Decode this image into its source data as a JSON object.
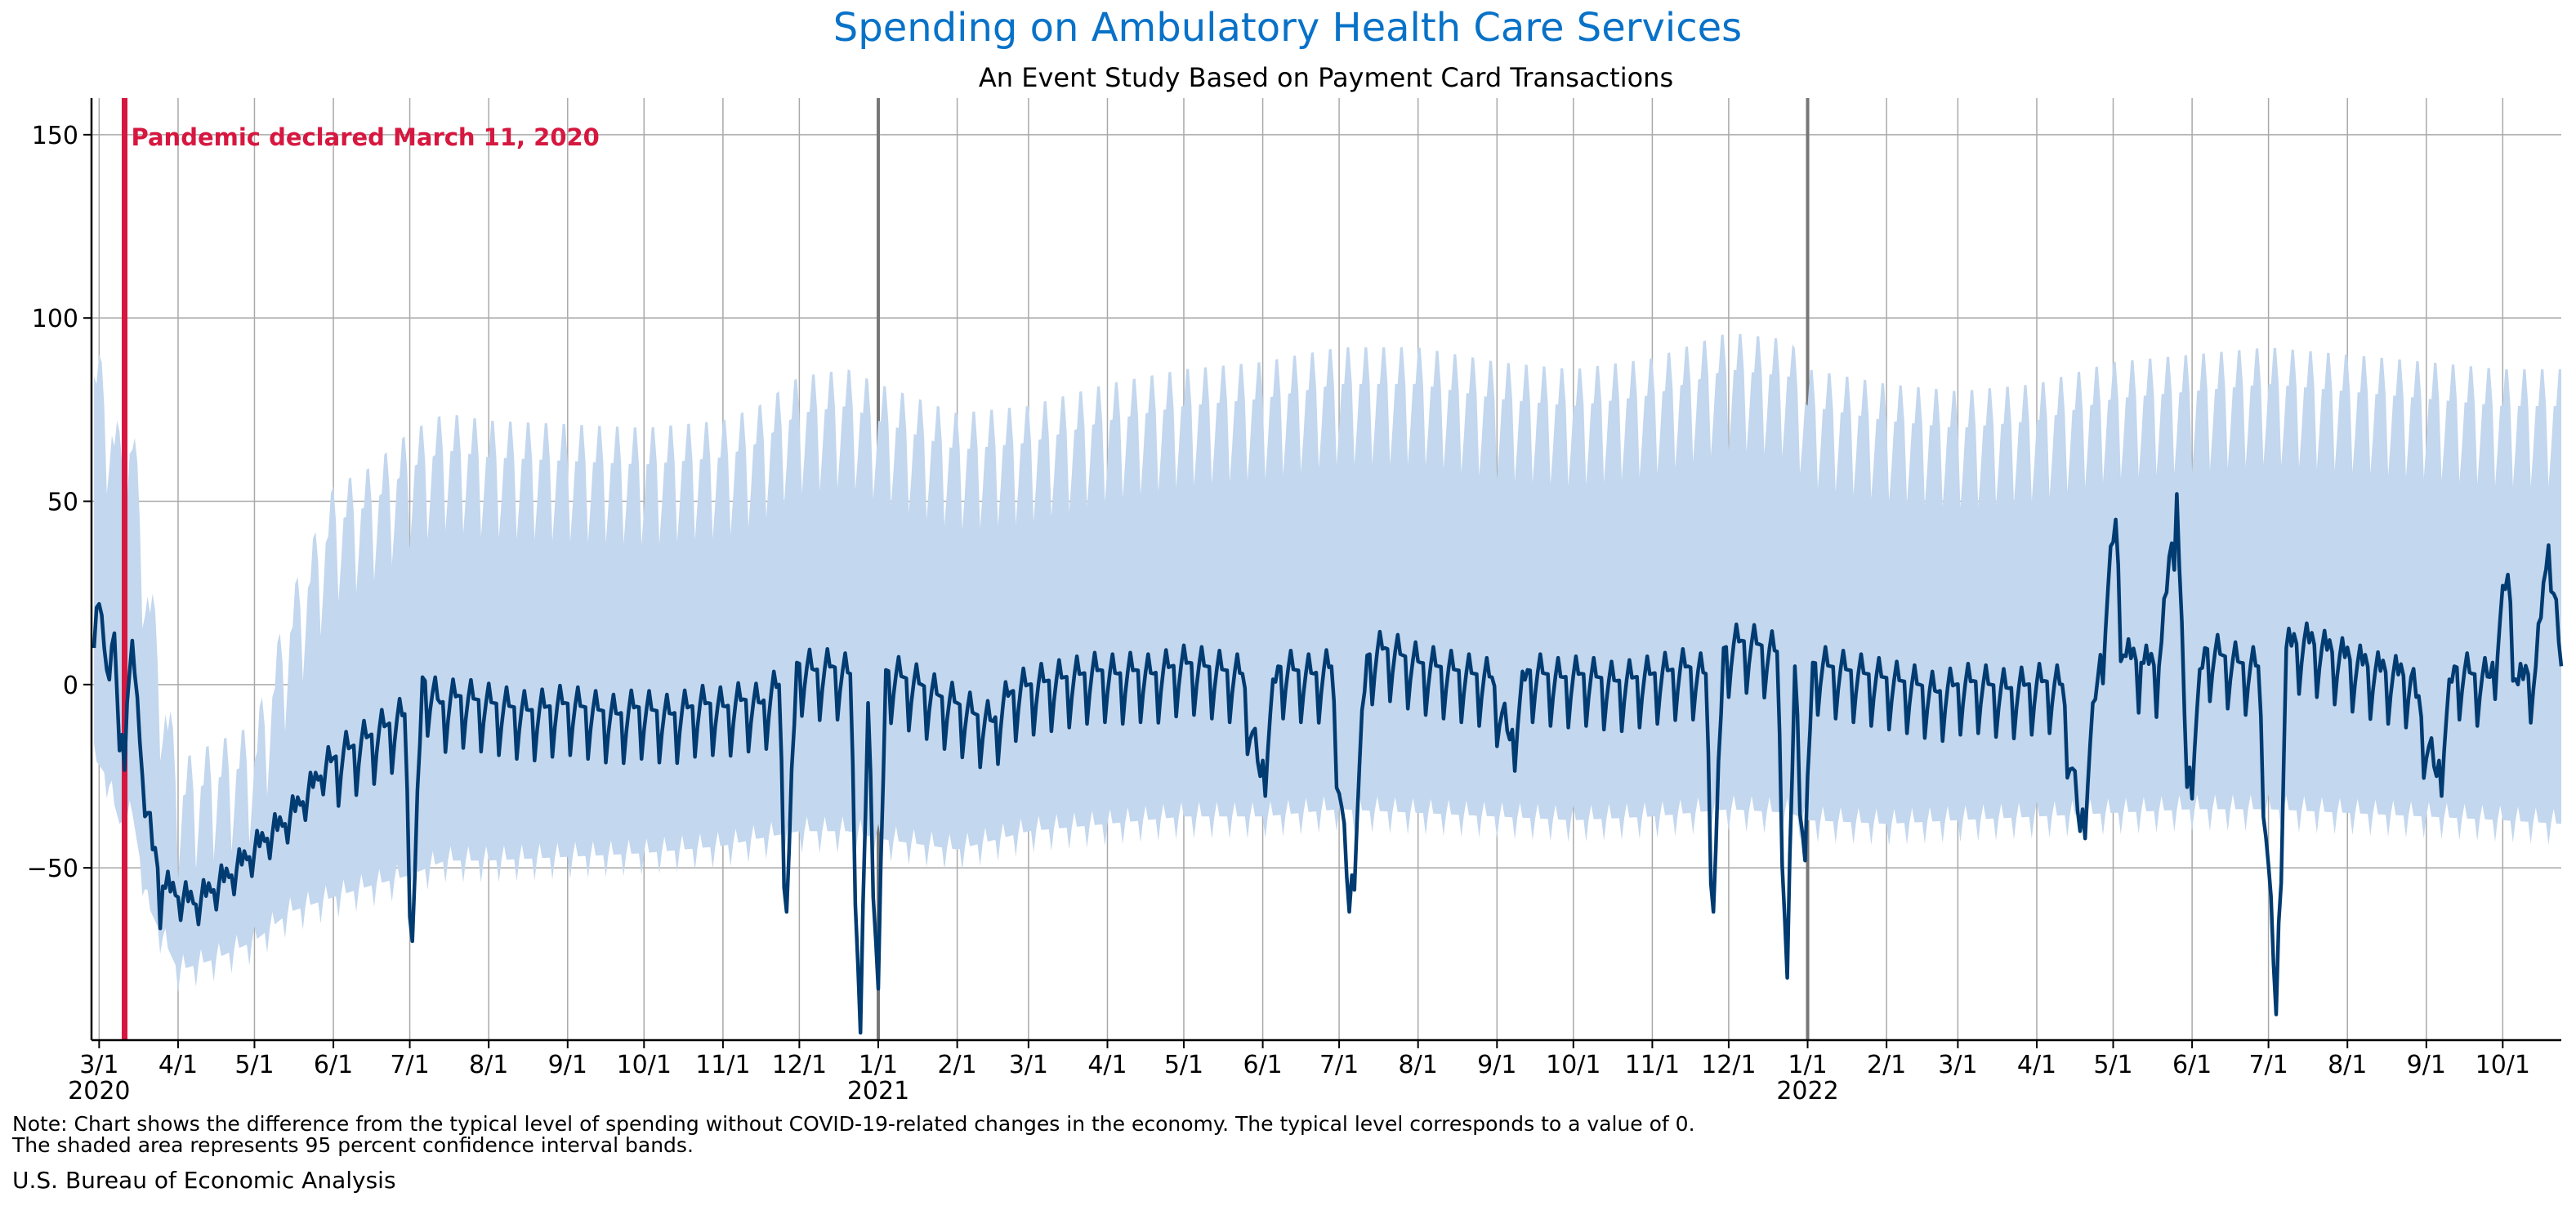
{
  "header": {
    "title": "Spending on Ambulatory Health Care Services",
    "subtitle": "An Event Study Based on Payment Card Transactions"
  },
  "footer": {
    "note_line1": "Note: Chart shows the difference from the typical level of spending without COVID-19-related changes in the economy. The typical level corresponds to a value of 0.",
    "note_line2": "The shaded area represents 95 percent confidence interval bands.",
    "source": "U.S. Bureau of Economic Analysis"
  },
  "chart_data": {
    "type": "line",
    "title": "Spending on Ambulatory Health Care Services",
    "subtitle": "An Event Study Based on Payment Card Transactions",
    "xlabel": "",
    "ylabel": "",
    "x_range": [
      "2020-02-27",
      "2022-10-24"
    ],
    "ylim": [
      -97,
      160
    ],
    "y_ticks": [
      -50,
      0,
      50,
      100,
      150
    ],
    "y_tick_labels": [
      "−50",
      "0",
      "50",
      "100",
      "150"
    ],
    "grid": true,
    "colors": {
      "line": "#003b71",
      "band": "#c3d7ee",
      "event": "#d6173f",
      "year_line": "#777777",
      "grid": "#a9a9a9",
      "title": "#0872c8"
    },
    "x_ticks": [
      {
        "date": "2020-03-01",
        "label": "3/1",
        "year": "2020"
      },
      {
        "date": "2020-04-01",
        "label": "4/1"
      },
      {
        "date": "2020-05-01",
        "label": "5/1"
      },
      {
        "date": "2020-06-01",
        "label": "6/1"
      },
      {
        "date": "2020-07-01",
        "label": "7/1"
      },
      {
        "date": "2020-08-01",
        "label": "8/1"
      },
      {
        "date": "2020-09-01",
        "label": "9/1"
      },
      {
        "date": "2020-10-01",
        "label": "10/1"
      },
      {
        "date": "2020-11-01",
        "label": "11/1"
      },
      {
        "date": "2020-12-01",
        "label": "12/1"
      },
      {
        "date": "2021-01-01",
        "label": "1/1",
        "year": "2021",
        "year_line": true
      },
      {
        "date": "2021-02-01",
        "label": "2/1"
      },
      {
        "date": "2021-03-01",
        "label": "3/1"
      },
      {
        "date": "2021-04-01",
        "label": "4/1"
      },
      {
        "date": "2021-05-01",
        "label": "5/1"
      },
      {
        "date": "2021-06-01",
        "label": "6/1"
      },
      {
        "date": "2021-07-01",
        "label": "7/1"
      },
      {
        "date": "2021-08-01",
        "label": "8/1"
      },
      {
        "date": "2021-09-01",
        "label": "9/1"
      },
      {
        "date": "2021-10-01",
        "label": "10/1"
      },
      {
        "date": "2021-11-01",
        "label": "11/1"
      },
      {
        "date": "2021-12-01",
        "label": "12/1"
      },
      {
        "date": "2022-01-01",
        "label": "1/1",
        "year": "2022",
        "year_line": true
      },
      {
        "date": "2022-02-01",
        "label": "2/1"
      },
      {
        "date": "2022-03-01",
        "label": "3/1"
      },
      {
        "date": "2022-04-01",
        "label": "4/1"
      },
      {
        "date": "2022-05-01",
        "label": "5/1"
      },
      {
        "date": "2022-06-01",
        "label": "6/1"
      },
      {
        "date": "2022-07-01",
        "label": "7/1"
      },
      {
        "date": "2022-08-01",
        "label": "8/1"
      },
      {
        "date": "2022-09-01",
        "label": "9/1"
      },
      {
        "date": "2022-10-01",
        "label": "10/1"
      }
    ],
    "annotations": [
      {
        "date": "2020-03-11",
        "text": "Pandemic declared March 11, 2020"
      }
    ],
    "series": [
      {
        "role": "estimate",
        "points": [
          [
            "2020-02-28",
            10
          ],
          [
            "2020-03-01",
            22
          ],
          [
            "2020-03-04",
            4
          ],
          [
            "2020-03-07",
            14
          ],
          [
            "2020-03-09",
            -18
          ],
          [
            "2020-03-12",
            -5
          ],
          [
            "2020-03-14",
            12
          ],
          [
            "2020-03-18",
            -25
          ],
          [
            "2020-03-22",
            -45
          ],
          [
            "2020-03-26",
            -55
          ],
          [
            "2020-04-01",
            -58
          ],
          [
            "2020-04-08",
            -60
          ],
          [
            "2020-04-15",
            -56
          ],
          [
            "2020-04-22",
            -52
          ],
          [
            "2020-04-29",
            -47
          ],
          [
            "2020-05-06",
            -42
          ],
          [
            "2020-05-13",
            -38
          ],
          [
            "2020-05-20",
            -32
          ],
          [
            "2020-05-27",
            -25
          ],
          [
            "2020-06-01",
            -20
          ],
          [
            "2020-06-08",
            -17
          ],
          [
            "2020-06-15",
            -14
          ],
          [
            "2020-06-22",
            -11
          ],
          [
            "2020-06-29",
            -8
          ],
          [
            "2020-07-02",
            -70
          ],
          [
            "2020-07-06",
            2
          ],
          [
            "2020-07-13",
            -5
          ],
          [
            "2020-07-20",
            -3
          ],
          [
            "2020-07-27",
            -4
          ],
          [
            "2020-08-03",
            -5
          ],
          [
            "2020-08-10",
            -6
          ],
          [
            "2020-08-17",
            -7
          ],
          [
            "2020-08-24",
            -6
          ],
          [
            "2020-08-31",
            -5
          ],
          [
            "2020-09-07",
            -6
          ],
          [
            "2020-09-14",
            -7
          ],
          [
            "2020-09-21",
            -8
          ],
          [
            "2020-09-28",
            -6
          ],
          [
            "2020-10-05",
            -7
          ],
          [
            "2020-10-12",
            -8
          ],
          [
            "2020-10-19",
            -6
          ],
          [
            "2020-10-26",
            -5
          ],
          [
            "2020-11-02",
            -6
          ],
          [
            "2020-11-09",
            -4
          ],
          [
            "2020-11-16",
            -5
          ],
          [
            "2020-11-23",
            0
          ],
          [
            "2020-11-26",
            -62
          ],
          [
            "2020-11-30",
            6
          ],
          [
            "2020-12-07",
            4
          ],
          [
            "2020-12-14",
            5
          ],
          [
            "2020-12-21",
            3
          ],
          [
            "2020-12-25",
            -95
          ],
          [
            "2020-12-28",
            -5
          ],
          [
            "2021-01-01",
            -83
          ],
          [
            "2021-01-04",
            4
          ],
          [
            "2021-01-11",
            2
          ],
          [
            "2021-01-18",
            0
          ],
          [
            "2021-01-25",
            -3
          ],
          [
            "2021-02-01",
            -5
          ],
          [
            "2021-02-08",
            -8
          ],
          [
            "2021-02-15",
            -10
          ],
          [
            "2021-02-22",
            -2
          ],
          [
            "2021-03-01",
            0
          ],
          [
            "2021-03-08",
            1
          ],
          [
            "2021-03-15",
            2
          ],
          [
            "2021-03-22",
            3
          ],
          [
            "2021-03-29",
            4
          ],
          [
            "2021-04-05",
            3
          ],
          [
            "2021-04-12",
            4
          ],
          [
            "2021-04-19",
            3
          ],
          [
            "2021-04-26",
            5
          ],
          [
            "2021-05-03",
            6
          ],
          [
            "2021-05-10",
            5
          ],
          [
            "2021-05-17",
            4
          ],
          [
            "2021-05-24",
            3
          ],
          [
            "2021-05-31",
            -25
          ],
          [
            "2021-06-07",
            5
          ],
          [
            "2021-06-14",
            4
          ],
          [
            "2021-06-21",
            3
          ],
          [
            "2021-06-28",
            5
          ],
          [
            "2021-07-05",
            -62
          ],
          [
            "2021-07-12",
            8
          ],
          [
            "2021-07-19",
            10
          ],
          [
            "2021-07-26",
            8
          ],
          [
            "2021-08-02",
            6
          ],
          [
            "2021-08-09",
            5
          ],
          [
            "2021-08-16",
            4
          ],
          [
            "2021-08-23",
            3
          ],
          [
            "2021-08-30",
            2
          ],
          [
            "2021-09-06",
            -15
          ],
          [
            "2021-09-13",
            4
          ],
          [
            "2021-09-20",
            3
          ],
          [
            "2021-09-27",
            2
          ],
          [
            "2021-10-04",
            3
          ],
          [
            "2021-10-11",
            2
          ],
          [
            "2021-10-18",
            1
          ],
          [
            "2021-10-25",
            2
          ],
          [
            "2021-11-01",
            3
          ],
          [
            "2021-11-08",
            4
          ],
          [
            "2021-11-15",
            5
          ],
          [
            "2021-11-22",
            3
          ],
          [
            "2021-11-25",
            -62
          ],
          [
            "2021-11-29",
            10
          ],
          [
            "2021-12-06",
            12
          ],
          [
            "2021-12-13",
            11
          ],
          [
            "2021-12-20",
            9
          ],
          [
            "2021-12-24",
            -80
          ],
          [
            "2021-12-27",
            5
          ],
          [
            "2021-12-31",
            -48
          ],
          [
            "2022-01-03",
            6
          ],
          [
            "2022-01-10",
            5
          ],
          [
            "2022-01-17",
            4
          ],
          [
            "2022-01-24",
            3
          ],
          [
            "2022-01-31",
            2
          ],
          [
            "2022-02-07",
            1
          ],
          [
            "2022-02-14",
            0
          ],
          [
            "2022-02-21",
            -2
          ],
          [
            "2022-02-28",
            0
          ],
          [
            "2022-03-07",
            1
          ],
          [
            "2022-03-14",
            0
          ],
          [
            "2022-03-21",
            -1
          ],
          [
            "2022-03-28",
            0
          ],
          [
            "2022-04-04",
            1
          ],
          [
            "2022-04-11",
            0
          ],
          [
            "2022-04-18",
            -40
          ],
          [
            "2022-04-25",
            2
          ],
          [
            "2022-05-02",
            45
          ],
          [
            "2022-05-05",
            8
          ],
          [
            "2022-05-12",
            6
          ],
          [
            "2022-05-19",
            5
          ],
          [
            "2022-05-26",
            52
          ],
          [
            "2022-05-30",
            -28
          ],
          [
            "2022-06-06",
            10
          ],
          [
            "2022-06-13",
            8
          ],
          [
            "2022-06-20",
            6
          ],
          [
            "2022-06-27",
            5
          ],
          [
            "2022-07-04",
            -90
          ],
          [
            "2022-07-08",
            10
          ],
          [
            "2022-07-15",
            12
          ],
          [
            "2022-07-22",
            10
          ],
          [
            "2022-07-29",
            8
          ],
          [
            "2022-08-05",
            6
          ],
          [
            "2022-08-12",
            4
          ],
          [
            "2022-08-19",
            3
          ],
          [
            "2022-08-26",
            2
          ],
          [
            "2022-09-05",
            -25
          ],
          [
            "2022-09-12",
            5
          ],
          [
            "2022-09-19",
            3
          ],
          [
            "2022-09-26",
            2
          ],
          [
            "2022-10-03",
            30
          ],
          [
            "2022-10-07",
            0
          ],
          [
            "2022-10-14",
            5
          ],
          [
            "2022-10-19",
            38
          ],
          [
            "2022-10-24",
            5
          ]
        ]
      },
      {
        "role": "confidence_band",
        "name": "95 percent confidence interval",
        "points": [
          [
            "2020-02-28",
            -20,
            80
          ],
          [
            "2020-03-04",
            -25,
            70
          ],
          [
            "2020-03-09",
            -38,
            55
          ],
          [
            "2020-03-14",
            -35,
            60
          ],
          [
            "2020-03-20",
            -60,
            20
          ],
          [
            "2020-04-01",
            -78,
            -35
          ],
          [
            "2020-04-15",
            -75,
            -30
          ],
          [
            "2020-05-01",
            -70,
            -25
          ],
          [
            "2020-05-15",
            -62,
            10
          ],
          [
            "2020-06-01",
            -58,
            40
          ],
          [
            "2020-06-15",
            -55,
            45
          ],
          [
            "2020-07-01",
            -52,
            55
          ],
          [
            "2020-07-15",
            -48,
            60
          ],
          [
            "2020-08-01",
            -48,
            58
          ],
          [
            "2020-09-01",
            -47,
            57
          ],
          [
            "2020-10-01",
            -46,
            56
          ],
          [
            "2020-11-01",
            -44,
            58
          ],
          [
            "2020-11-15",
            -42,
            62
          ],
          [
            "2020-12-01",
            -40,
            70
          ],
          [
            "2020-12-20",
            -40,
            72
          ],
          [
            "2021-01-01",
            -42,
            68
          ],
          [
            "2021-02-01",
            -45,
            60
          ],
          [
            "2021-03-01",
            -40,
            62
          ],
          [
            "2021-04-01",
            -38,
            68
          ],
          [
            "2021-05-01",
            -36,
            72
          ],
          [
            "2021-06-01",
            -36,
            74
          ],
          [
            "2021-07-01",
            -34,
            78
          ],
          [
            "2021-08-01",
            -35,
            78
          ],
          [
            "2021-09-01",
            -36,
            74
          ],
          [
            "2021-10-01",
            -37,
            72
          ],
          [
            "2021-11-01",
            -36,
            75
          ],
          [
            "2021-12-01",
            -34,
            82
          ],
          [
            "2021-12-25",
            -35,
            80
          ],
          [
            "2022-01-01",
            -37,
            72
          ],
          [
            "2022-02-01",
            -38,
            68
          ],
          [
            "2022-03-01",
            -37,
            66
          ],
          [
            "2022-04-01",
            -36,
            68
          ],
          [
            "2022-05-01",
            -35,
            74
          ],
          [
            "2022-06-01",
            -34,
            76
          ],
          [
            "2022-07-01",
            -34,
            78
          ],
          [
            "2022-08-01",
            -35,
            76
          ],
          [
            "2022-09-01",
            -36,
            74
          ],
          [
            "2022-10-01",
            -37,
            72
          ],
          [
            "2022-10-24",
            -38,
            72
          ]
        ]
      }
    ]
  }
}
